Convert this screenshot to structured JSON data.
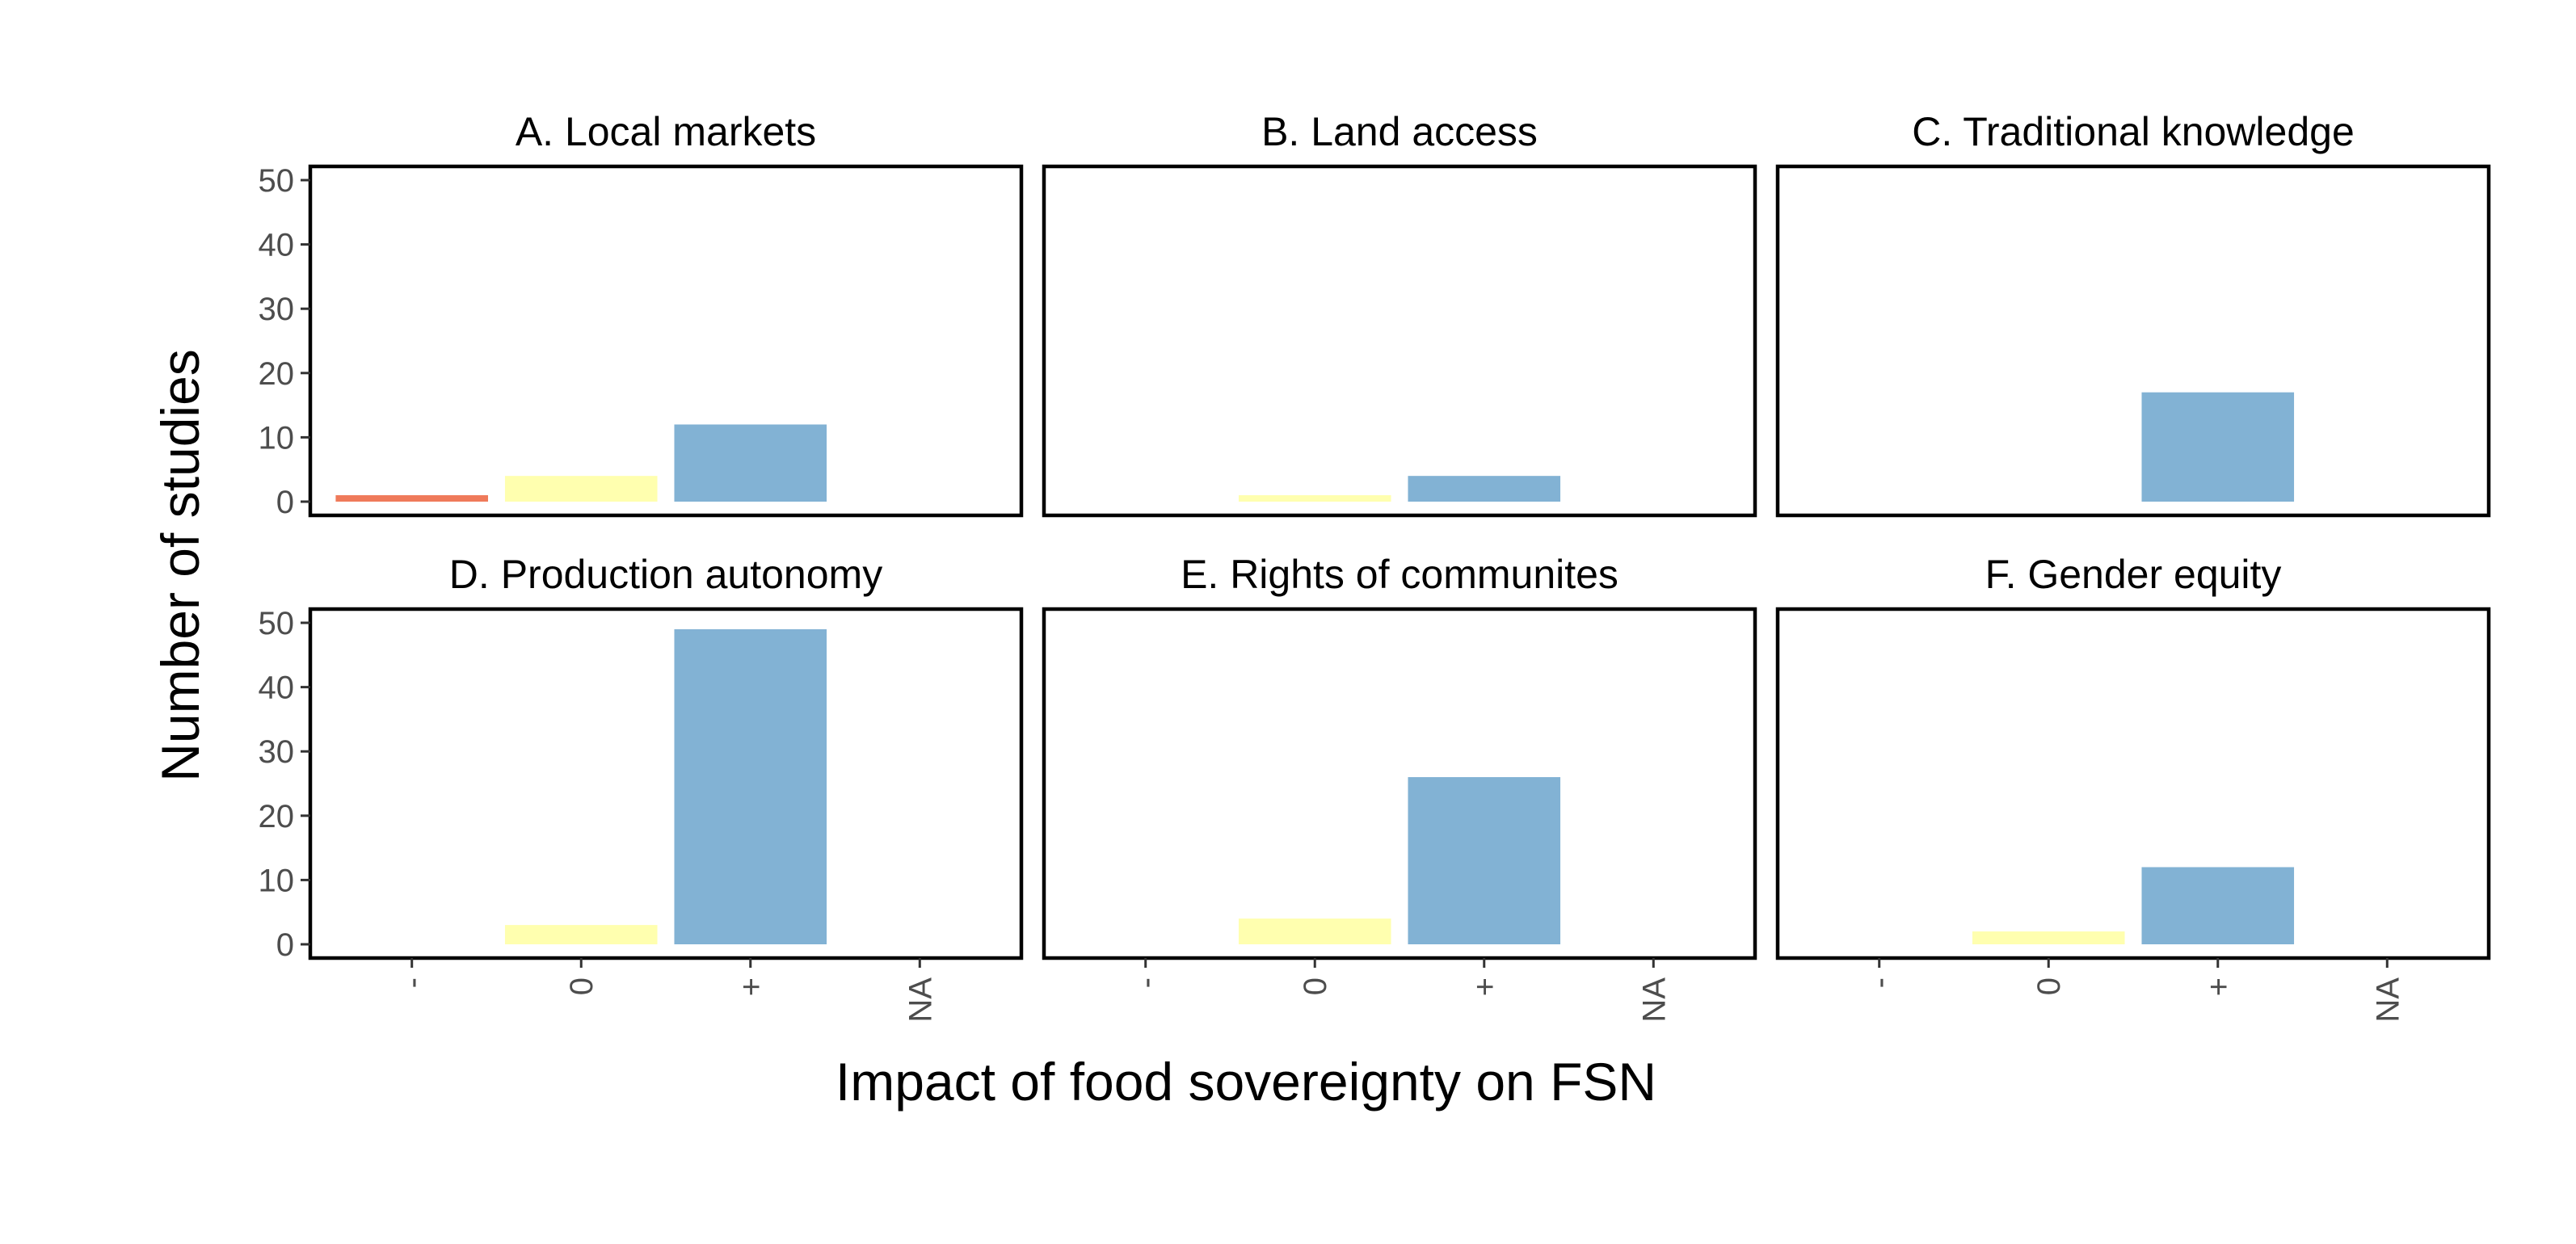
{
  "chart_data": {
    "type": "bar",
    "layout": "facet grid, 2 rows x 3 columns, shared axes",
    "categories": [
      "-",
      "0",
      "+",
      "NA"
    ],
    "category_colors": {
      "-": "#EF7A5A",
      "0": "#FFFFAF",
      "+": "#82B2D4",
      "NA": "#BDBDBD"
    },
    "xlabel": "Impact of food sovereignty on FSN",
    "ylabel": "Number of studies",
    "ylim": [
      0,
      50
    ],
    "yticks": [
      "0",
      "10",
      "20",
      "30",
      "40",
      "50"
    ],
    "grid": false,
    "legend": "none",
    "panels": [
      {
        "title": "A. Local markets",
        "values": [
          1,
          4,
          12,
          0
        ]
      },
      {
        "title": "B. Land access",
        "values": [
          0,
          1,
          4,
          0
        ]
      },
      {
        "title": "C. Traditional knowledge",
        "values": [
          0,
          0,
          17,
          0
        ]
      },
      {
        "title": "D. Production autonomy",
        "values": [
          0,
          3,
          49,
          0
        ]
      },
      {
        "title": "E. Rights of communites",
        "values": [
          0,
          4,
          26,
          0
        ]
      },
      {
        "title": "F. Gender equity",
        "values": [
          0,
          2,
          12,
          0
        ]
      }
    ]
  }
}
